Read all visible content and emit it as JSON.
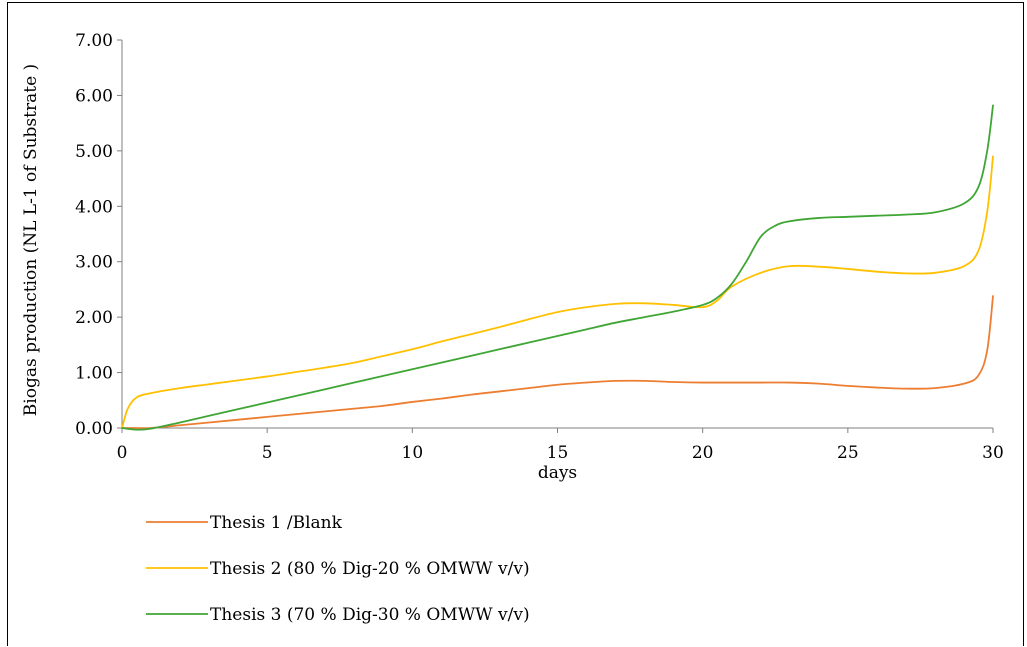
{
  "chart_data": {
    "type": "line",
    "title": "",
    "xlabel": "days",
    "ylabel": "Biogas production (NL L-1 of Substrate )",
    "xlim": [
      0,
      30
    ],
    "ylim": [
      0,
      7
    ],
    "x_ticks": [
      "0",
      "5",
      "10",
      "15",
      "20",
      "25",
      "30"
    ],
    "x_tick_values": [
      0,
      5,
      10,
      15,
      20,
      25,
      30
    ],
    "y_ticks": [
      "0.00",
      "1.00",
      "2.00",
      "3.00",
      "4.00",
      "5.00",
      "6.00",
      "7.00"
    ],
    "y_tick_values": [
      0,
      1,
      2,
      3,
      4,
      5,
      6,
      7
    ],
    "grid": false,
    "legend_position": "bottom-left",
    "series": [
      {
        "name": "Thesis 1 /Blank",
        "color": "#ED7D31",
        "x": [
          0,
          0.5,
          1,
          2,
          3,
          4,
          5,
          6,
          7,
          8,
          9,
          10,
          11,
          12,
          13,
          14,
          15,
          16,
          17,
          18,
          19,
          20,
          21,
          22,
          23,
          24,
          25,
          26,
          27,
          28,
          29,
          29.5,
          29.8,
          30
        ],
        "y": [
          0,
          0,
          0,
          0.05,
          0.1,
          0.15,
          0.2,
          0.25,
          0.3,
          0.35,
          0.4,
          0.47,
          0.53,
          0.6,
          0.66,
          0.72,
          0.78,
          0.82,
          0.85,
          0.85,
          0.83,
          0.82,
          0.82,
          0.82,
          0.82,
          0.8,
          0.76,
          0.73,
          0.71,
          0.72,
          0.8,
          0.95,
          1.4,
          2.38
        ]
      },
      {
        "name": "Thesis 2 (80 % Dig-20 % OMWW v/v)",
        "color": "#FFC000",
        "x": [
          0,
          0.2,
          0.5,
          1,
          2,
          3,
          4,
          5,
          6,
          7,
          8,
          9,
          10,
          11,
          12,
          13,
          14,
          15,
          16,
          17,
          18,
          19,
          20,
          20.5,
          21,
          22,
          23,
          24,
          25,
          26,
          27,
          28,
          29,
          29.5,
          29.8,
          30
        ],
        "y": [
          0,
          0.35,
          0.55,
          0.63,
          0.72,
          0.79,
          0.86,
          0.93,
          1.01,
          1.09,
          1.18,
          1.3,
          1.42,
          1.56,
          1.69,
          1.82,
          1.96,
          2.09,
          2.18,
          2.24,
          2.25,
          2.22,
          2.18,
          2.3,
          2.55,
          2.8,
          2.92,
          2.91,
          2.87,
          2.82,
          2.79,
          2.8,
          2.92,
          3.2,
          3.9,
          4.9
        ]
      },
      {
        "name": "Thesis 3 (70 % Dig-30 % OMWW v/v)",
        "color": "#3FA535",
        "x": [
          0,
          0.5,
          1,
          2,
          3,
          4,
          5,
          6,
          7,
          8,
          9,
          10,
          11,
          12,
          13,
          14,
          15,
          16,
          17,
          18,
          19,
          20,
          20.5,
          21,
          21.5,
          22,
          22.5,
          23,
          24,
          25,
          26,
          27,
          28,
          29,
          29.5,
          29.8,
          30
        ],
        "y": [
          0,
          -0.03,
          -0.01,
          0.1,
          0.22,
          0.34,
          0.46,
          0.58,
          0.7,
          0.82,
          0.94,
          1.06,
          1.18,
          1.3,
          1.42,
          1.54,
          1.66,
          1.78,
          1.9,
          2.0,
          2.1,
          2.22,
          2.35,
          2.6,
          3.0,
          3.45,
          3.65,
          3.73,
          3.79,
          3.81,
          3.83,
          3.85,
          3.89,
          4.05,
          4.35,
          5.0,
          5.82
        ]
      }
    ]
  }
}
